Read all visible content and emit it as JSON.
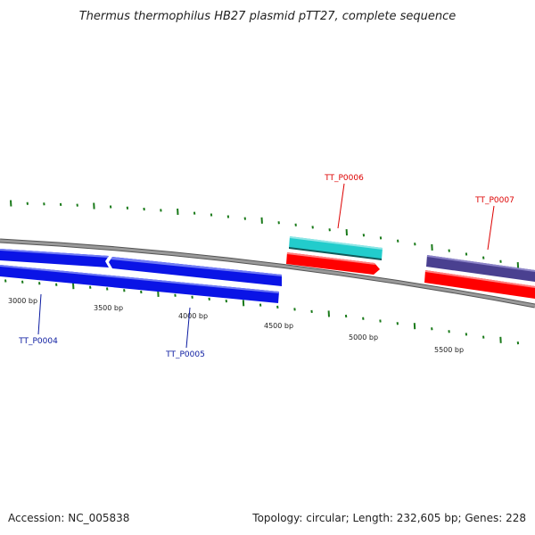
{
  "title": "Thermus thermophilus HB27 plasmid pTT27, complete sequence",
  "footer": {
    "accession": "Accession: NC_005838",
    "topology": "Topology: circular; Length: 232,605 bp; Genes: 228"
  },
  "colors": {
    "backbone": "#8c8c8c",
    "tick": "#1a7a1a",
    "blue_gene": "#0a14e6",
    "cyan_gene": "#22cccc",
    "red_gene": "#ff0000",
    "purple_gene": "#4a4090",
    "blue_label": "#0a1aa0",
    "red_label": "#dd0000"
  },
  "ticks": [
    {
      "label": "3000 bp"
    },
    {
      "label": "3500 bp"
    },
    {
      "label": "4000 bp"
    },
    {
      "label": "4500 bp"
    },
    {
      "label": "5000 bp"
    },
    {
      "label": "5500 bp"
    }
  ],
  "genes": [
    {
      "name": "TT_P0004",
      "color": "blue",
      "labeled": true
    },
    {
      "name": "TT_P0005",
      "color": "blue",
      "labeled": true
    },
    {
      "name": "TT_P0006",
      "color": "cyan",
      "labeled": true
    },
    {
      "name": "TT_P0007",
      "color": "purple",
      "labeled": true
    }
  ]
}
